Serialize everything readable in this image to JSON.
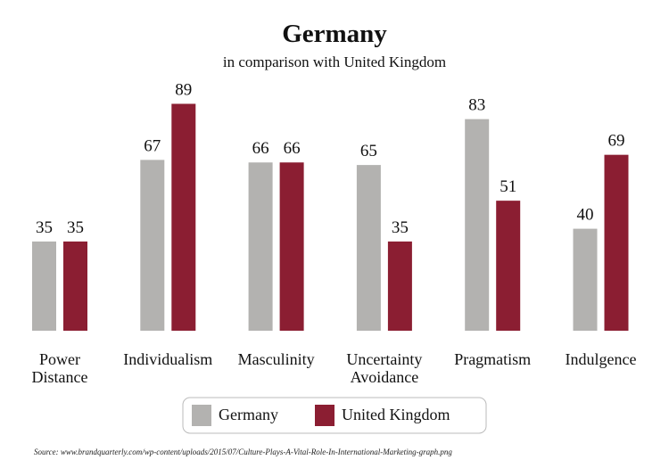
{
  "chart_data": {
    "type": "bar",
    "title": "Germany",
    "subtitle": "in comparison with United Kingdom",
    "categories": [
      "Power Distance",
      "Individualism",
      "Masculinity",
      "Uncertainty Avoidance",
      "Pragmatism",
      "Indulgence"
    ],
    "series": [
      {
        "name": "Germany",
        "color": "#b3b2b0",
        "values": [
          35,
          67,
          66,
          65,
          83,
          40
        ]
      },
      {
        "name": "United Kingdom",
        "color": "#8b1e32",
        "values": [
          35,
          89,
          66,
          35,
          51,
          69
        ]
      }
    ],
    "source": "Source: www.brandquarterly.com/wp-content/uploads/2015/07/Culture-Plays-A-Vital-Role-In-International-Marketing-graph.png"
  }
}
